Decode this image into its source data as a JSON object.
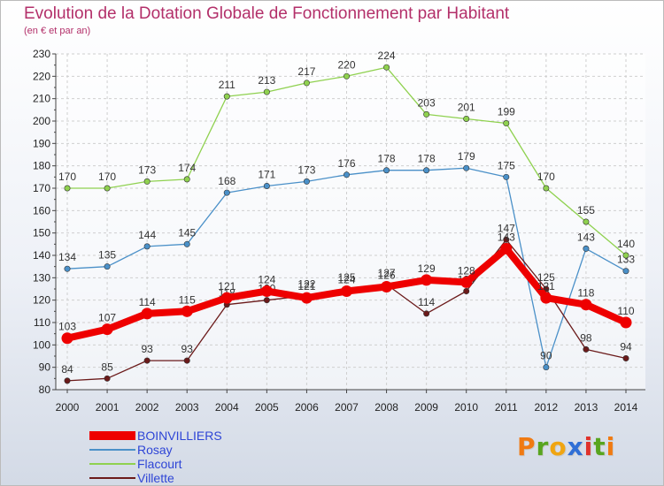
{
  "title": "Evolution de la Dotation Globale de Fonctionnement par Habitant",
  "subtitle": "(en € et par an)",
  "brand": {
    "letters": [
      "P",
      "r",
      "o",
      "x",
      "i",
      "t",
      "i"
    ],
    "colors": [
      "#f07a12",
      "#58a51f",
      "#f0a512",
      "#2f6fd6",
      "#e0322c",
      "#58a51f",
      "#f07a12"
    ]
  },
  "chart_data": {
    "type": "line",
    "title": "Evolution de la Dotation Globale de Fonctionnement par Habitant",
    "subtitle": "(en € et par an)",
    "x": [
      "2000",
      "2001",
      "2002",
      "2003",
      "2004",
      "2005",
      "2006",
      "2007",
      "2008",
      "2009",
      "2010",
      "2011",
      "2012",
      "2013",
      "2014"
    ],
    "ylim": [
      80,
      230
    ],
    "yticks": [
      "80",
      "90",
      "100",
      "110",
      "120",
      "130",
      "140",
      "150",
      "160",
      "170",
      "180",
      "190",
      "200",
      "210",
      "220",
      "230"
    ],
    "grid": true,
    "legend_position": "bottom-left",
    "series": [
      {
        "name": "Rosay",
        "color": "#4a90c8",
        "values": [
          134,
          135,
          144,
          145,
          168,
          171,
          173,
          176,
          178,
          178,
          179,
          175,
          90,
          143,
          133
        ],
        "labels": [
          "134",
          "135",
          "144",
          "145",
          "168",
          "171",
          "173",
          "176",
          "178",
          "178",
          "179",
          "175",
          "90",
          "143",
          "133"
        ]
      },
      {
        "name": "Flacourt",
        "color": "#8fd14f",
        "values": [
          170,
          170,
          173,
          174,
          211,
          213,
          217,
          220,
          224,
          203,
          201,
          199,
          170,
          155,
          140
        ],
        "labels": [
          "170",
          "170",
          "173",
          "174",
          "211",
          "213",
          "217",
          "220",
          "224",
          "203",
          "201",
          "199",
          "170",
          "155",
          "140"
        ]
      },
      {
        "name": "Villette",
        "color": "#6b1a1a",
        "values": [
          84,
          85,
          93,
          93,
          118,
          120,
          122,
          125,
          127,
          114,
          124,
          147,
          125,
          98,
          94
        ],
        "labels": [
          "84",
          "85",
          "93",
          "93",
          "118",
          "120",
          "122",
          "125",
          "127",
          "114",
          "124",
          "147",
          "125",
          "98",
          "94"
        ]
      },
      {
        "name": "BOINVILLIERS",
        "color": "#ee0000",
        "values": [
          103,
          107,
          114,
          115,
          121,
          124,
          121,
          124,
          126,
          129,
          128,
          143,
          121,
          118,
          110
        ],
        "labels": [
          "103",
          "107",
          "114",
          "115",
          "121",
          "124",
          "121",
          "124",
          "126",
          "129",
          "128",
          "143",
          "121",
          "118",
          "110"
        ]
      }
    ],
    "legend": [
      "BOINVILLIERS",
      "Rosay",
      "Flacourt",
      "Villette"
    ]
  }
}
